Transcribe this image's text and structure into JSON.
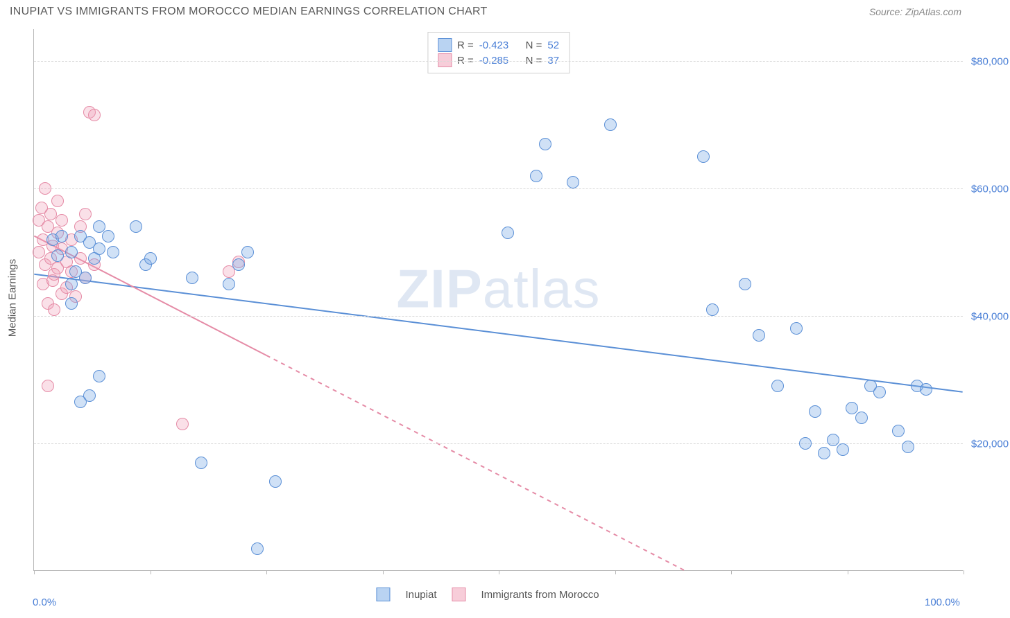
{
  "title": "INUPIAT VS IMMIGRANTS FROM MOROCCO MEDIAN EARNINGS CORRELATION CHART",
  "source": "Source: ZipAtlas.com",
  "watermark_a": "ZIP",
  "watermark_b": "atlas",
  "y_axis_title": "Median Earnings",
  "chart": {
    "type": "scatter",
    "background_color": "#ffffff",
    "grid_color": "#d8d8d8",
    "axis_color": "#b8b8b8",
    "tick_label_color": "#4a7fd6",
    "xlim": [
      0,
      100
    ],
    "ylim": [
      0,
      85000
    ],
    "x_ticks_pct": [
      0,
      12.5,
      25,
      37.5,
      50,
      62.5,
      75,
      87.5,
      100
    ],
    "x_labels": {
      "0": "0.0%",
      "100": "100.0%"
    },
    "y_gridlines": [
      20000,
      40000,
      60000,
      80000
    ],
    "y_labels": {
      "20000": "$20,000",
      "40000": "$40,000",
      "60000": "$60,000",
      "80000": "$80,000"
    },
    "marker_radius": 9,
    "line_width": 2
  },
  "legend_top": [
    {
      "swatch": "blue",
      "R": "-0.423",
      "N": "52"
    },
    {
      "swatch": "pink",
      "R": "-0.285",
      "N": "37"
    }
  ],
  "legend_bottom": [
    {
      "swatch": "blue",
      "label": "Inupiat"
    },
    {
      "swatch": "pink",
      "label": "Immigrants from Morocco"
    }
  ],
  "series": {
    "blue": {
      "color_fill": "rgba(120,170,230,0.35)",
      "color_stroke": "#5a8fd6",
      "trend": {
        "x1": 0,
        "y1": 46500,
        "x2": 100,
        "y2": 28000,
        "solid_to_x": 100
      },
      "points": [
        [
          2,
          52000
        ],
        [
          2.5,
          49500
        ],
        [
          3,
          52500
        ],
        [
          4,
          50000
        ],
        [
          4,
          45000
        ],
        [
          4.5,
          47000
        ],
        [
          5,
          52500
        ],
        [
          5.5,
          46000
        ],
        [
          6,
          51500
        ],
        [
          6.5,
          49000
        ],
        [
          7,
          54000
        ],
        [
          7,
          50500
        ],
        [
          8,
          52500
        ],
        [
          8.5,
          50000
        ],
        [
          4,
          42000
        ],
        [
          5,
          26500
        ],
        [
          6,
          27500
        ],
        [
          7,
          30500
        ],
        [
          11,
          54000
        ],
        [
          12,
          48000
        ],
        [
          12.5,
          49000
        ],
        [
          17,
          46000
        ],
        [
          18,
          17000
        ],
        [
          21,
          45000
        ],
        [
          22,
          48000
        ],
        [
          23,
          50000
        ],
        [
          24,
          3500
        ],
        [
          26,
          14000
        ],
        [
          51,
          53000
        ],
        [
          54,
          62000
        ],
        [
          55,
          67000
        ],
        [
          58,
          61000
        ],
        [
          62,
          70000
        ],
        [
          72,
          65000
        ],
        [
          73,
          41000
        ],
        [
          76.5,
          45000
        ],
        [
          78,
          37000
        ],
        [
          80,
          29000
        ],
        [
          82,
          38000
        ],
        [
          83,
          20000
        ],
        [
          84,
          25000
        ],
        [
          85,
          18500
        ],
        [
          86,
          20500
        ],
        [
          87,
          19000
        ],
        [
          88,
          25500
        ],
        [
          89,
          24000
        ],
        [
          90,
          29000
        ],
        [
          91,
          28000
        ],
        [
          93,
          22000
        ],
        [
          94,
          19500
        ],
        [
          95,
          29000
        ],
        [
          96,
          28500
        ]
      ]
    },
    "pink": {
      "color_fill": "rgba(240,160,185,0.32)",
      "color_stroke": "#e58ba6",
      "trend": {
        "x1": 0,
        "y1": 52500,
        "x2": 70,
        "y2": 0,
        "solid_to_x": 25
      },
      "points": [
        [
          0.5,
          50000
        ],
        [
          0.5,
          55000
        ],
        [
          0.8,
          57000
        ],
        [
          1,
          52000
        ],
        [
          1,
          45000
        ],
        [
          1.2,
          48000
        ],
        [
          1.2,
          60000
        ],
        [
          1.5,
          54000
        ],
        [
          1.5,
          42000
        ],
        [
          1.5,
          29000
        ],
        [
          1.8,
          56000
        ],
        [
          1.8,
          49000
        ],
        [
          2,
          51000
        ],
        [
          2,
          45500
        ],
        [
          2.2,
          46500
        ],
        [
          2.2,
          41000
        ],
        [
          2.5,
          58000
        ],
        [
          2.5,
          53000
        ],
        [
          2.5,
          47500
        ],
        [
          3,
          55000
        ],
        [
          3,
          50500
        ],
        [
          3,
          43500
        ],
        [
          3.5,
          48500
        ],
        [
          3.5,
          44500
        ],
        [
          4,
          52000
        ],
        [
          4,
          47000
        ],
        [
          4.5,
          43000
        ],
        [
          5,
          54000
        ],
        [
          5,
          49000
        ],
        [
          5.5,
          56000
        ],
        [
          5.5,
          46000
        ],
        [
          6,
          72000
        ],
        [
          6.5,
          71500
        ],
        [
          6.5,
          48000
        ],
        [
          16,
          23000
        ],
        [
          21,
          47000
        ],
        [
          22,
          48500
        ]
      ]
    }
  },
  "labels": {
    "R": "R =",
    "N": "N ="
  }
}
